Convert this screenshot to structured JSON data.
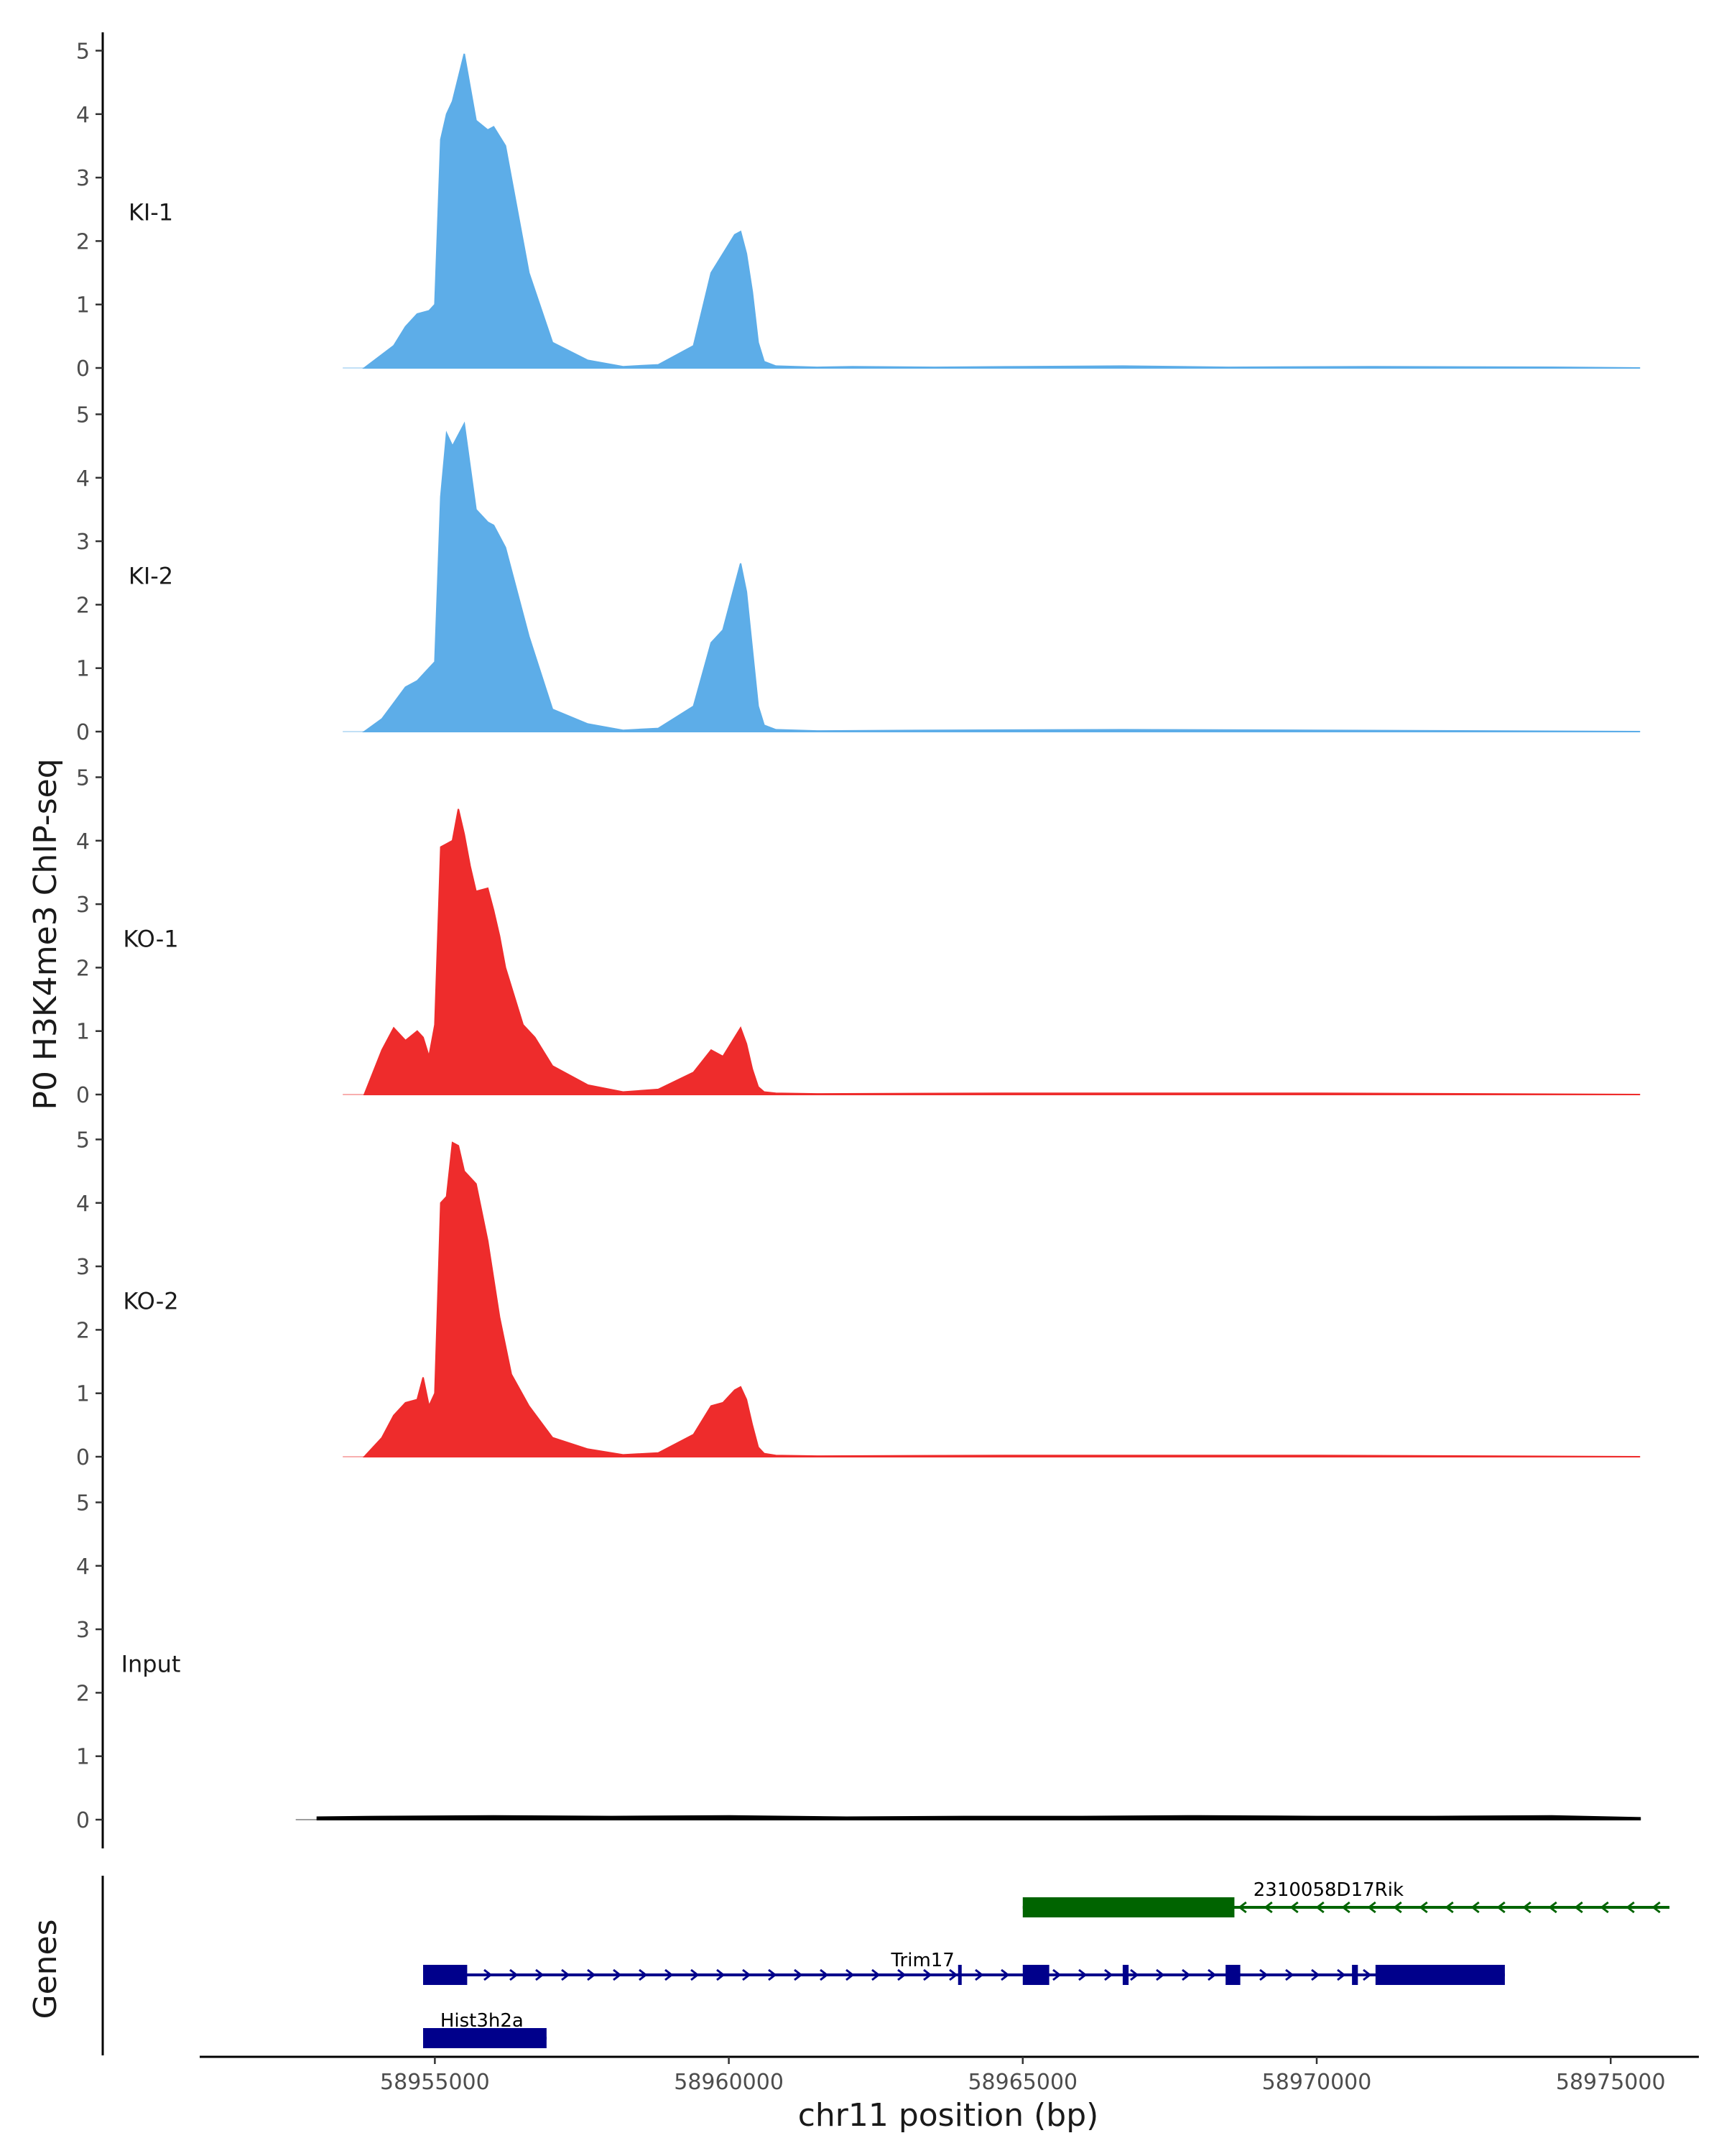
{
  "chart_data": {
    "type": "area",
    "title": "",
    "ylabel": "P0 H3K4me3 ChIP-seq",
    "xlabel": "chr11 position (bp)",
    "xlim": [
      58951000,
      58976500
    ],
    "ylim": [
      0,
      5.15
    ],
    "y_ticks": [
      0,
      1,
      2,
      3,
      4,
      5
    ],
    "x_ticks": [
      58955000,
      58960000,
      58965000,
      58970000,
      58975000
    ],
    "x_tick_labels": [
      "58955000",
      "58960000",
      "58965000",
      "58970000",
      "58975000"
    ],
    "colors": {
      "KI": "#5dade8",
      "KO": "#ee2c2c",
      "Input": "#000000",
      "gene_plus": "#00008b",
      "gene_minus": "#006400"
    },
    "tracks": [
      {
        "name": "KI-1",
        "color": "#5dade8",
        "x": [
          58953800,
          58954300,
          58954500,
          58954700,
          58954900,
          58955000,
          58955100,
          58955200,
          58955300,
          58955500,
          58955700,
          58955900,
          58956000,
          58956200,
          58956600,
          58957000,
          58957600,
          58958200,
          58958800,
          58959400,
          58959700,
          58959900,
          58960100,
          58960200,
          58960300,
          58960400,
          58960500,
          58960600,
          58960800,
          58961500,
          58962100,
          58963500,
          58965000,
          58966700,
          58968500,
          58971000,
          58974200,
          58975500
        ],
        "values": [
          0.0,
          0.35,
          0.65,
          0.85,
          0.9,
          1.0,
          3.6,
          4.0,
          4.2,
          4.95,
          3.9,
          3.75,
          3.8,
          3.5,
          1.5,
          0.4,
          0.12,
          0.02,
          0.05,
          0.35,
          1.5,
          1.8,
          2.1,
          2.15,
          1.8,
          1.2,
          0.4,
          0.1,
          0.03,
          0.01,
          0.02,
          0.01,
          0.02,
          0.03,
          0.01,
          0.02,
          0.01,
          0.0
        ]
      },
      {
        "name": "KI-2",
        "color": "#5dade8",
        "x": [
          58953800,
          58954100,
          58954300,
          58954500,
          58954700,
          58954900,
          58955000,
          58955100,
          58955200,
          58955300,
          58955500,
          58955700,
          58955900,
          58956000,
          58956200,
          58956600,
          58957000,
          58957600,
          58958200,
          58958800,
          58959400,
          58959700,
          58959900,
          58960100,
          58960200,
          58960300,
          58960400,
          58960500,
          58960600,
          58960800,
          58961500,
          58963500,
          58966700,
          58970000,
          58975500
        ],
        "values": [
          0.0,
          0.2,
          0.45,
          0.7,
          0.8,
          1.0,
          1.1,
          3.7,
          4.7,
          4.5,
          4.85,
          3.5,
          3.3,
          3.25,
          2.9,
          1.5,
          0.35,
          0.12,
          0.02,
          0.05,
          0.4,
          1.4,
          1.6,
          2.3,
          2.65,
          2.2,
          1.3,
          0.4,
          0.1,
          0.03,
          0.01,
          0.02,
          0.03,
          0.02,
          0.0
        ]
      },
      {
        "name": "KO-1",
        "color": "#ee2c2c",
        "x": [
          58953800,
          58954100,
          58954300,
          58954500,
          58954700,
          58954800,
          58954900,
          58955000,
          58955100,
          58955200,
          58955300,
          58955400,
          58955500,
          58955600,
          58955700,
          58955900,
          58956000,
          58956100,
          58956200,
          58956500,
          58956700,
          58957000,
          58957600,
          58958200,
          58958800,
          58959400,
          58959700,
          58959900,
          58960100,
          58960200,
          58960300,
          58960400,
          58960500,
          58960600,
          58960800,
          58961500,
          58965000,
          58970000,
          58975500
        ],
        "values": [
          0.0,
          0.7,
          1.05,
          0.85,
          1.0,
          0.9,
          0.6,
          1.1,
          3.9,
          3.95,
          4.0,
          4.5,
          4.1,
          3.6,
          3.2,
          3.25,
          2.9,
          2.5,
          2.0,
          1.1,
          0.9,
          0.45,
          0.15,
          0.04,
          0.08,
          0.35,
          0.7,
          0.6,
          0.9,
          1.05,
          0.8,
          0.4,
          0.12,
          0.04,
          0.02,
          0.01,
          0.02,
          0.02,
          0.0
        ]
      },
      {
        "name": "KO-2",
        "color": "#ee2c2c",
        "x": [
          58953800,
          58954100,
          58954300,
          58954500,
          58954700,
          58954800,
          58954900,
          58955000,
          58955100,
          58955200,
          58955300,
          58955400,
          58955500,
          58955700,
          58955900,
          58956100,
          58956300,
          58956600,
          58957000,
          58957600,
          58958200,
          58958800,
          58959400,
          58959700,
          58959900,
          58960100,
          58960200,
          58960300,
          58960400,
          58960500,
          58960600,
          58960800,
          58961500,
          58965000,
          58970000,
          58975500
        ],
        "values": [
          0.0,
          0.3,
          0.65,
          0.85,
          0.9,
          1.25,
          0.8,
          1.0,
          4.0,
          4.1,
          4.95,
          4.9,
          4.5,
          4.3,
          3.4,
          2.2,
          1.3,
          0.8,
          0.3,
          0.12,
          0.03,
          0.06,
          0.35,
          0.8,
          0.85,
          1.05,
          1.1,
          0.9,
          0.5,
          0.15,
          0.05,
          0.02,
          0.01,
          0.02,
          0.02,
          0.0
        ]
      },
      {
        "name": "Input",
        "color": "#000000",
        "x": [
          58953000,
          58954000,
          58956000,
          58958000,
          58960000,
          58962000,
          58964000,
          58966000,
          58968000,
          58970000,
          58972000,
          58974000,
          58975500
        ],
        "values": [
          0.04,
          0.05,
          0.06,
          0.05,
          0.06,
          0.04,
          0.05,
          0.05,
          0.06,
          0.05,
          0.05,
          0.06,
          0.03
        ]
      }
    ],
    "genes_track_label": "Genes",
    "genes": [
      {
        "name": "2310058D17Rik",
        "strand": "-",
        "color": "#006400",
        "start": 58965000,
        "end": 58976000,
        "exons": [
          [
            58965000,
            58968600
          ]
        ]
      },
      {
        "name": "Trim17",
        "strand": "+",
        "color": "#00008b",
        "start": 58954800,
        "end": 58973200,
        "exons": [
          [
            58954800,
            58955550
          ],
          [
            58963900,
            58963950
          ],
          [
            58965000,
            58965450
          ],
          [
            58966700,
            58966800
          ],
          [
            58968450,
            58968700
          ],
          [
            58970600,
            58970700
          ],
          [
            58971000,
            58973200
          ]
        ]
      },
      {
        "name": "Hist3h2a",
        "strand": "+",
        "color": "#00008b",
        "start": 58954800,
        "end": 58956900,
        "exons": [
          [
            58954800,
            58956900
          ]
        ]
      }
    ]
  }
}
